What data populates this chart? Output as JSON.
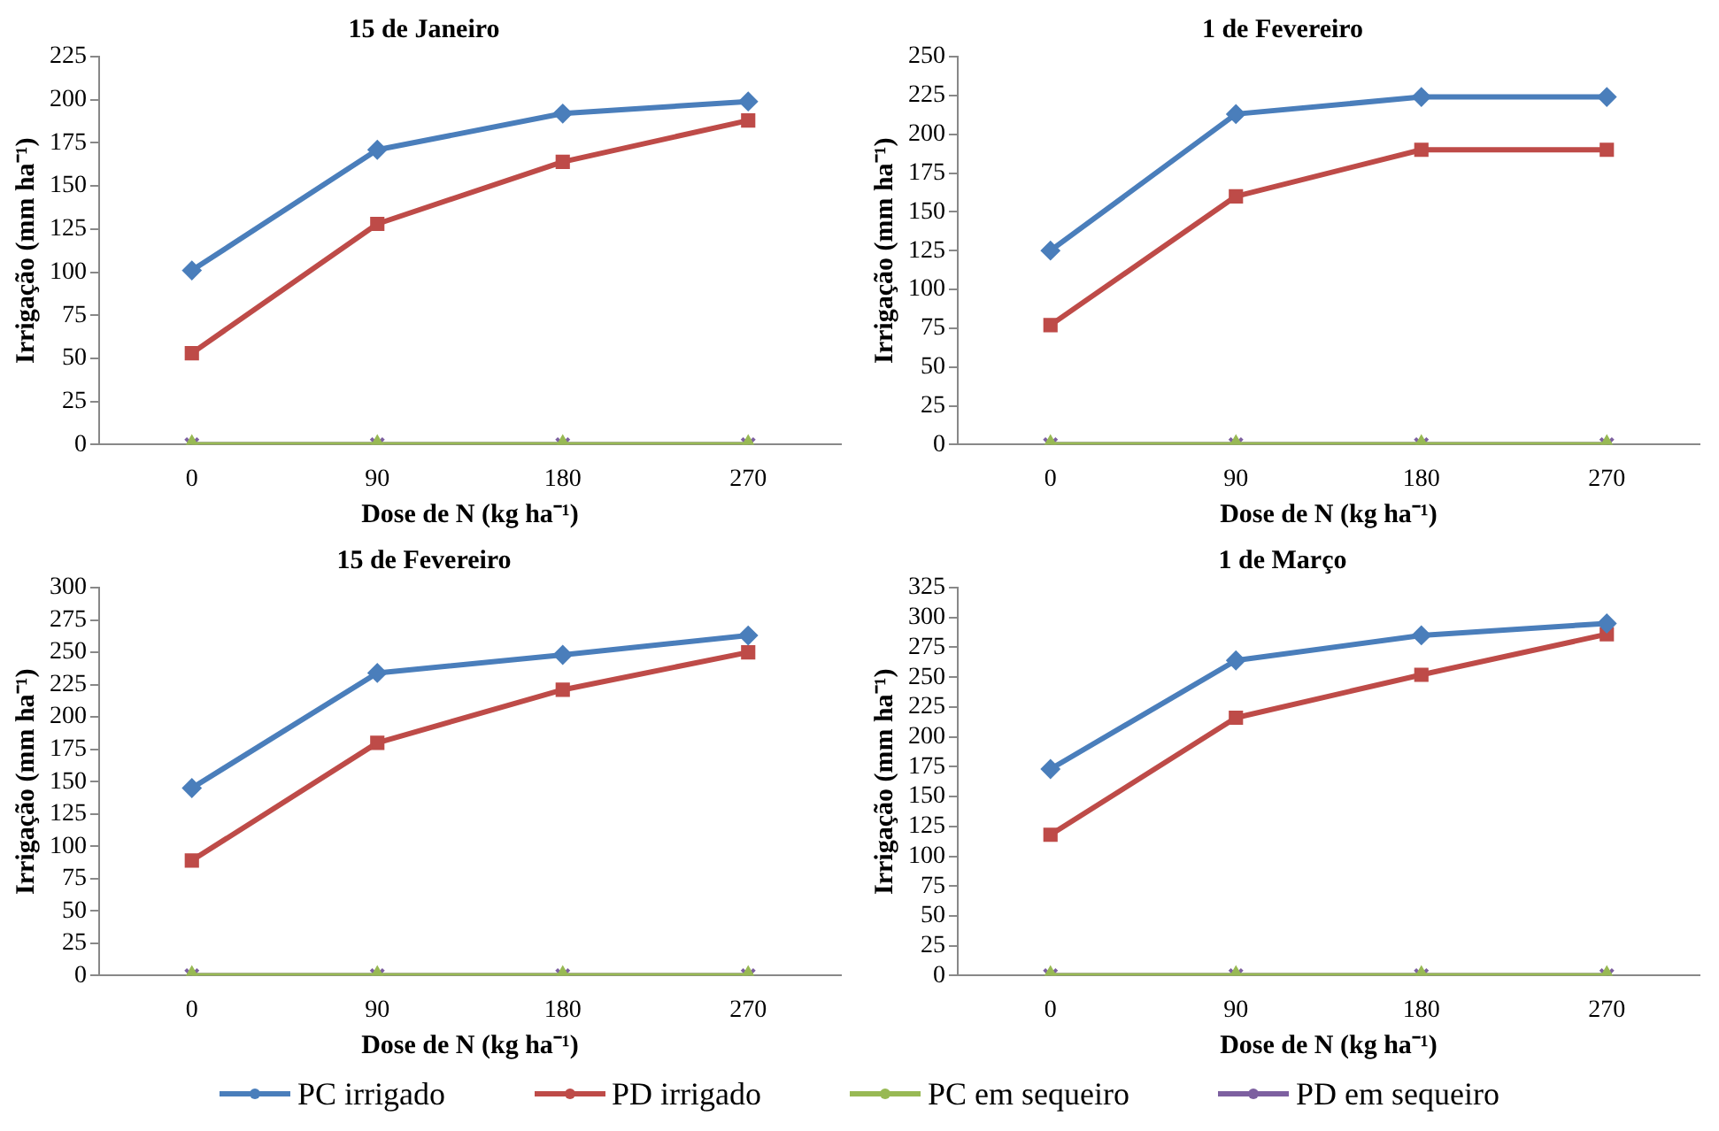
{
  "chart_data": [
    {
      "type": "line",
      "title": "15 de Janeiro",
      "xlabel": "Dose de N (kg ha⁻¹)",
      "ylabel": "Irrigação (mm ha⁻¹)",
      "categories": [
        "0",
        "90",
        "180",
        "270"
      ],
      "ylim": [
        0,
        225
      ],
      "yticks": [
        0,
        25,
        50,
        75,
        100,
        125,
        150,
        175,
        200,
        225
      ],
      "legend": "bottom",
      "series": [
        {
          "name": "PC irrigado",
          "color": "#4a7ebb",
          "marker": "diamond",
          "values": [
            101,
            171,
            192,
            199
          ]
        },
        {
          "name": "PD irrigado",
          "color": "#be4b48",
          "marker": "square",
          "values": [
            53,
            128,
            164,
            188
          ]
        },
        {
          "name": "PC em sequeiro",
          "color": "#98b954",
          "marker": "triangle",
          "values": [
            0,
            0,
            0,
            0
          ]
        },
        {
          "name": "PD em sequeiro",
          "color": "#7d60a0",
          "marker": "cross",
          "values": [
            0,
            0,
            0,
            0
          ]
        }
      ]
    },
    {
      "type": "line",
      "title": "1 de Fevereiro",
      "xlabel": "Dose de N (kg ha⁻¹)",
      "ylabel": "Irrigação (mm ha⁻¹)",
      "categories": [
        "0",
        "90",
        "180",
        "270"
      ],
      "ylim": [
        0,
        250
      ],
      "yticks": [
        0,
        25,
        50,
        75,
        100,
        125,
        150,
        175,
        200,
        225,
        250
      ],
      "series": [
        {
          "color": "#4a7ebb",
          "marker": "diamond",
          "values": [
            125,
            213,
            224,
            224
          ]
        },
        {
          "color": "#be4b48",
          "marker": "square",
          "values": [
            77,
            160,
            190,
            190
          ]
        },
        {
          "color": "#98b954",
          "marker": "triangle",
          "values": [
            0,
            0,
            0,
            0
          ]
        },
        {
          "color": "#7d60a0",
          "marker": "cross",
          "values": [
            0,
            0,
            0,
            0
          ]
        }
      ]
    },
    {
      "type": "line",
      "title": "15 de Fevereiro",
      "xlabel": "Dose de N (kg ha⁻¹)",
      "ylabel": "Irrigação (mm ha⁻¹)",
      "categories": [
        "0",
        "90",
        "180",
        "270"
      ],
      "ylim": [
        0,
        300
      ],
      "yticks": [
        0,
        25,
        50,
        75,
        100,
        125,
        150,
        175,
        200,
        225,
        250,
        275,
        300
      ],
      "series": [
        {
          "color": "#4a7ebb",
          "marker": "diamond",
          "values": [
            145,
            234,
            248,
            263
          ]
        },
        {
          "color": "#be4b48",
          "marker": "square",
          "values": [
            89,
            180,
            221,
            250
          ]
        },
        {
          "color": "#98b954",
          "marker": "triangle",
          "values": [
            0,
            0,
            0,
            0
          ]
        },
        {
          "color": "#7d60a0",
          "marker": "cross",
          "values": [
            0,
            0,
            0,
            0
          ]
        }
      ]
    },
    {
      "type": "line",
      "title": "1 de Março",
      "xlabel": "Dose de N (kg ha⁻¹)",
      "ylabel": "Irrigação (mm ha⁻¹)",
      "categories": [
        "0",
        "90",
        "180",
        "270"
      ],
      "ylim": [
        0,
        325
      ],
      "yticks": [
        0,
        25,
        50,
        75,
        100,
        125,
        150,
        175,
        200,
        225,
        250,
        275,
        300,
        325
      ],
      "series": [
        {
          "color": "#4a7ebb",
          "marker": "diamond",
          "values": [
            173,
            264,
            285,
            295
          ]
        },
        {
          "color": "#be4b48",
          "marker": "square",
          "values": [
            118,
            216,
            252,
            286
          ]
        },
        {
          "color": "#98b954",
          "marker": "triangle",
          "values": [
            0,
            0,
            0,
            0
          ]
        },
        {
          "color": "#7d60a0",
          "marker": "cross",
          "values": [
            0,
            0,
            0,
            0
          ]
        }
      ]
    }
  ]
}
